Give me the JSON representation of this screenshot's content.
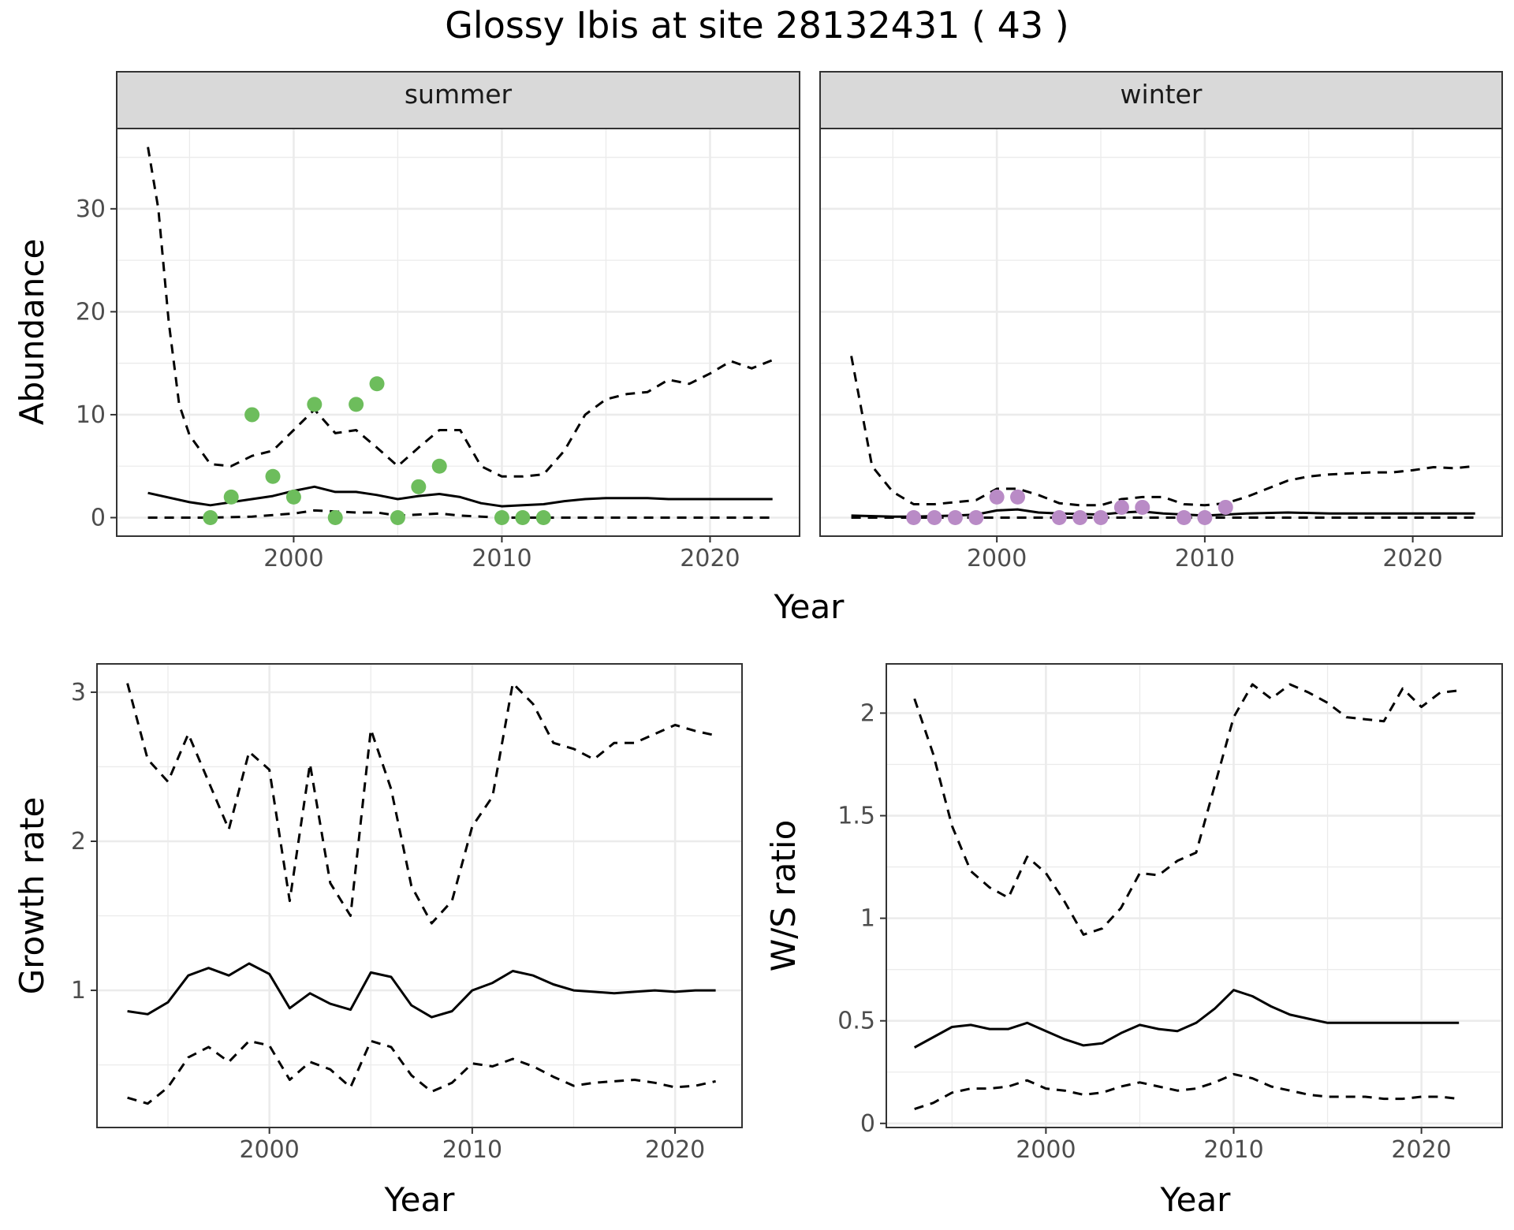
{
  "title": "Glossy Ibis at site 28132431 ( 43 )",
  "colors": {
    "summer_points": "#6dbd5c",
    "winter_points": "#b98bc6",
    "lines": "#000000",
    "grid": "#ebebeb",
    "strip_bg": "#d9d9d9"
  },
  "chart_data": [
    {
      "type": "line",
      "facets": [
        "summer",
        "winter"
      ],
      "xlabel": "Year",
      "ylabel": "Abundance",
      "xlim": [
        1991.5,
        2024.3
      ],
      "ylim": [
        -1.8,
        37.8
      ],
      "xticks": [
        2000,
        2010,
        2020
      ],
      "yticks": [
        0,
        10,
        20,
        30
      ],
      "grid": true,
      "panels": [
        {
          "facet": "summer",
          "series": [
            {
              "role": "estimate",
              "style": "solid",
              "x": [
                1993,
                1995,
                1996,
                1998,
                1999,
                2000,
                2001,
                2002,
                2003,
                2004,
                2005,
                2006,
                2007,
                2008,
                2009,
                2010,
                2011,
                2012,
                2013,
                2014,
                2015,
                2016,
                2017,
                2018,
                2019,
                2020,
                2021,
                2022,
                2023
              ],
              "y": [
                2.4,
                1.5,
                1.2,
                1.8,
                2.1,
                2.6,
                3.0,
                2.5,
                2.5,
                2.2,
                1.8,
                2.1,
                2.3,
                2.0,
                1.4,
                1.1,
                1.2,
                1.3,
                1.6,
                1.8,
                1.9,
                1.9,
                1.9,
                1.8,
                1.8,
                1.8,
                1.8,
                1.8,
                1.8
              ]
            },
            {
              "role": "upper",
              "style": "dashed",
              "x": [
                1993,
                1993.5,
                1994,
                1994.5,
                1995,
                1996,
                1997,
                1998,
                1999,
                2000,
                2001,
                2002,
                2003,
                2004,
                2005,
                2006,
                2007,
                2008,
                2009,
                2010,
                2011,
                2012,
                2013,
                2014,
                2015,
                2016,
                2017,
                2018,
                2019,
                2020,
                2021,
                2022,
                2023
              ],
              "y": [
                36.0,
                30.0,
                19.0,
                11.0,
                8.0,
                5.2,
                5.0,
                6.0,
                6.5,
                8.5,
                10.5,
                8.2,
                8.5,
                6.8,
                5.0,
                6.8,
                8.5,
                8.5,
                5.0,
                4.0,
                4.0,
                4.2,
                6.5,
                10.0,
                11.5,
                12.0,
                12.2,
                13.4,
                13.0,
                14.0,
                15.2,
                14.5,
                15.3
              ]
            },
            {
              "role": "lower",
              "style": "dashed",
              "x": [
                1993,
                1995,
                1996,
                1998,
                2000,
                2001,
                2002,
                2003,
                2004,
                2005,
                2006,
                2007,
                2008,
                2009,
                2010,
                2015,
                2020,
                2023
              ],
              "y": [
                0.0,
                0.0,
                0.0,
                0.1,
                0.4,
                0.7,
                0.6,
                0.5,
                0.5,
                0.2,
                0.3,
                0.4,
                0.2,
                0.1,
                0.0,
                0.0,
                0.0,
                0.0
              ]
            },
            {
              "role": "observed",
              "style": "points",
              "x": [
                1996,
                1997,
                1998,
                1999,
                2000,
                2001,
                2002,
                2003,
                2004,
                2005,
                2006,
                2007,
                2010,
                2011,
                2012
              ],
              "y": [
                0,
                2,
                10,
                4,
                2,
                11,
                0,
                11,
                13,
                0,
                3,
                5,
                0,
                0,
                0
              ]
            }
          ]
        },
        {
          "facet": "winter",
          "series": [
            {
              "role": "estimate",
              "style": "solid",
              "x": [
                1993,
                1995,
                1996,
                1998,
                1999,
                2000,
                2001,
                2002,
                2003,
                2005,
                2006,
                2007,
                2008,
                2010,
                2011,
                2012,
                2014,
                2016,
                2018,
                2020,
                2023
              ],
              "y": [
                0.2,
                0.1,
                0.1,
                0.2,
                0.3,
                0.7,
                0.8,
                0.5,
                0.4,
                0.3,
                0.5,
                0.6,
                0.4,
                0.2,
                0.3,
                0.4,
                0.5,
                0.4,
                0.4,
                0.4,
                0.4
              ]
            },
            {
              "role": "upper",
              "style": "dashed",
              "x": [
                1993,
                1994,
                1995,
                1996,
                1997,
                1998,
                1999,
                2000,
                2001,
                2002,
                2003,
                2004,
                2005,
                2006,
                2007,
                2008,
                2009,
                2010,
                2011,
                2012,
                2013,
                2014,
                2015,
                2016,
                2017,
                2018,
                2019,
                2020,
                2021,
                2022,
                2023
              ],
              "y": [
                15.7,
                5.0,
                2.5,
                1.3,
                1.3,
                1.5,
                1.7,
                2.8,
                2.8,
                2.2,
                1.4,
                1.2,
                1.2,
                1.8,
                2.0,
                2.0,
                1.3,
                1.2,
                1.4,
                2.0,
                2.8,
                3.6,
                4.0,
                4.2,
                4.3,
                4.4,
                4.4,
                4.6,
                4.9,
                4.8,
                5.0
              ]
            },
            {
              "role": "lower",
              "style": "dashed",
              "x": [
                1993,
                2023
              ],
              "y": [
                0.0,
                0.0
              ]
            },
            {
              "role": "observed",
              "style": "points",
              "x": [
                1996,
                1997,
                1998,
                1999,
                2000,
                2001,
                2003,
                2004,
                2005,
                2006,
                2007,
                2009,
                2010,
                2011
              ],
              "y": [
                0,
                0,
                0,
                0,
                2,
                2,
                0,
                0,
                0,
                1,
                1,
                0,
                0,
                1
              ]
            }
          ]
        }
      ]
    },
    {
      "type": "line",
      "xlabel": "Year",
      "ylabel": "Growth rate",
      "xlim": [
        1991.5,
        2023.3
      ],
      "ylim": [
        0.08,
        3.19
      ],
      "xticks": [
        2000,
        2010,
        2020
      ],
      "yticks": [
        1,
        2,
        3
      ],
      "grid": true,
      "series": [
        {
          "role": "estimate",
          "style": "solid",
          "x": [
            1993,
            1994,
            1995,
            1996,
            1997,
            1998,
            1999,
            2000,
            2001,
            2002,
            2003,
            2004,
            2005,
            2006,
            2007,
            2008,
            2009,
            2010,
            2011,
            2012,
            2013,
            2014,
            2015,
            2016,
            2017,
            2018,
            2019,
            2020,
            2021,
            2022
          ],
          "y": [
            0.86,
            0.84,
            0.92,
            1.1,
            1.15,
            1.1,
            1.18,
            1.11,
            0.88,
            0.98,
            0.91,
            0.87,
            1.12,
            1.09,
            0.9,
            0.82,
            0.86,
            1.0,
            1.05,
            1.13,
            1.1,
            1.04,
            1.0,
            0.99,
            0.98,
            0.99,
            1.0,
            0.99,
            1.0,
            1.0
          ]
        },
        {
          "role": "upper",
          "style": "dashed",
          "x": [
            1993,
            1994,
            1995,
            1996,
            1997,
            1998,
            1999,
            2000,
            2001,
            2002,
            2003,
            2004,
            2005,
            2006,
            2007,
            2008,
            2009,
            2010,
            2011,
            2012,
            2013,
            2014,
            2015,
            2016,
            2017,
            2018,
            2019,
            2020,
            2021,
            2022
          ],
          "y": [
            3.06,
            2.55,
            2.4,
            2.72,
            2.4,
            2.08,
            2.6,
            2.48,
            1.6,
            2.52,
            1.72,
            1.5,
            2.75,
            2.35,
            1.7,
            1.45,
            1.6,
            2.1,
            2.3,
            3.06,
            2.92,
            2.66,
            2.62,
            2.55,
            2.66,
            2.66,
            2.72,
            2.78,
            2.74,
            2.71
          ]
        },
        {
          "role": "lower",
          "style": "dashed",
          "x": [
            1993,
            1994,
            1995,
            1996,
            1997,
            1998,
            1999,
            2000,
            2001,
            2002,
            2003,
            2004,
            2005,
            2006,
            2007,
            2008,
            2009,
            2010,
            2011,
            2012,
            2013,
            2014,
            2015,
            2016,
            2017,
            2018,
            2019,
            2020,
            2021,
            2022
          ],
          "y": [
            0.28,
            0.24,
            0.35,
            0.55,
            0.62,
            0.52,
            0.66,
            0.63,
            0.4,
            0.52,
            0.47,
            0.35,
            0.66,
            0.62,
            0.43,
            0.32,
            0.38,
            0.51,
            0.49,
            0.54,
            0.49,
            0.42,
            0.36,
            0.38,
            0.39,
            0.4,
            0.38,
            0.35,
            0.36,
            0.39
          ]
        }
      ]
    },
    {
      "type": "line",
      "xlabel": "Year",
      "ylabel": "W/S ratio",
      "xlim": [
        1991.5,
        2024.3
      ],
      "ylim": [
        -0.02,
        2.24
      ],
      "xticks": [
        2000,
        2010,
        2020
      ],
      "yticks": [
        0.0,
        0.5,
        1.0,
        1.5,
        2.0
      ],
      "grid": true,
      "series": [
        {
          "role": "estimate",
          "style": "solid",
          "x": [
            1993,
            1994,
            1995,
            1996,
            1997,
            1998,
            1999,
            2000,
            2001,
            2002,
            2003,
            2004,
            2005,
            2006,
            2007,
            2008,
            2009,
            2010,
            2011,
            2012,
            2013,
            2014,
            2015,
            2016,
            2017,
            2018,
            2019,
            2020,
            2021,
            2022
          ],
          "y": [
            0.37,
            0.42,
            0.47,
            0.48,
            0.46,
            0.46,
            0.49,
            0.45,
            0.41,
            0.38,
            0.39,
            0.44,
            0.48,
            0.46,
            0.45,
            0.49,
            0.56,
            0.65,
            0.62,
            0.57,
            0.53,
            0.51,
            0.49,
            0.49,
            0.49,
            0.49,
            0.49,
            0.49,
            0.49,
            0.49
          ]
        },
        {
          "role": "upper",
          "style": "dashed",
          "x": [
            1993,
            1994,
            1995,
            1996,
            1997,
            1998,
            1999,
            2000,
            2001,
            2002,
            2003,
            2004,
            2005,
            2006,
            2007,
            2008,
            2009,
            2010,
            2011,
            2012,
            2013,
            2014,
            2015,
            2016,
            2017,
            2018,
            2019,
            2020,
            2021,
            2022
          ],
          "y": [
            2.07,
            1.8,
            1.45,
            1.23,
            1.15,
            1.1,
            1.3,
            1.22,
            1.08,
            0.92,
            0.95,
            1.05,
            1.22,
            1.21,
            1.28,
            1.32,
            1.65,
            1.98,
            2.14,
            2.07,
            2.14,
            2.1,
            2.05,
            1.98,
            1.97,
            1.96,
            2.12,
            2.03,
            2.1,
            2.11
          ]
        },
        {
          "role": "lower",
          "style": "dashed",
          "x": [
            1993,
            1994,
            1995,
            1996,
            1997,
            1998,
            1999,
            2000,
            2001,
            2002,
            2003,
            2004,
            2005,
            2006,
            2007,
            2008,
            2009,
            2010,
            2011,
            2012,
            2013,
            2014,
            2015,
            2016,
            2017,
            2018,
            2019,
            2020,
            2021,
            2022
          ],
          "y": [
            0.07,
            0.1,
            0.15,
            0.17,
            0.17,
            0.18,
            0.21,
            0.17,
            0.16,
            0.14,
            0.15,
            0.18,
            0.2,
            0.18,
            0.16,
            0.17,
            0.2,
            0.24,
            0.22,
            0.18,
            0.16,
            0.14,
            0.13,
            0.13,
            0.13,
            0.12,
            0.12,
            0.13,
            0.13,
            0.12
          ]
        }
      ]
    }
  ]
}
